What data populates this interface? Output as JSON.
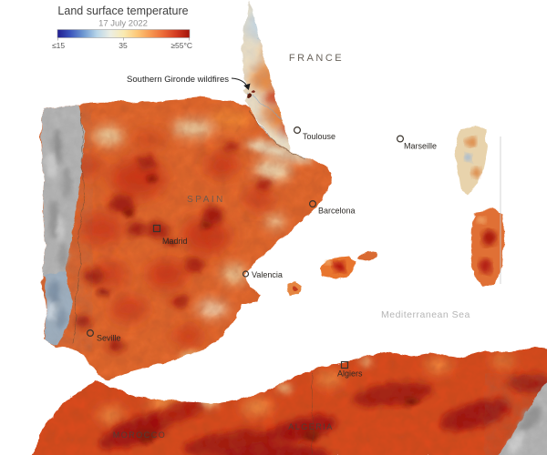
{
  "legend": {
    "title": "Land surface temperature",
    "date": "17 July 2022",
    "tick_min": "≤15",
    "tick_mid": "35",
    "tick_max": "≥55°C",
    "scale_colors": [
      "#201d90",
      "#3c56bd",
      "#6f9ad2",
      "#b9d6e9",
      "#eceee4",
      "#f9eab2",
      "#fdc979",
      "#f79a53",
      "#ec6a38",
      "#d23a20",
      "#a31309"
    ]
  },
  "annotations": {
    "wildfire_label": "Southern Gironde wildfires"
  },
  "labels": {
    "france": "FRANCE",
    "spain": "SPAIN",
    "morocco": "MOROCCO",
    "algeria": "ALGERIA",
    "sea": "Mediterranean Sea"
  },
  "cities": {
    "toulouse": "Toulouse",
    "marseille": "Marseille",
    "barcelona": "Barcelona",
    "madrid": "Madrid",
    "valencia": "Valencia",
    "seville": "Seville",
    "algiers": "Algiers"
  },
  "map_colors": {
    "sea": "#ffffff",
    "hot_base": "#e56a2e",
    "africa_base": "#dc4a1c",
    "france_base": "#ecdfc4",
    "alps_cold": "#2c3da0",
    "nodata_gray": "#b5b5b5"
  }
}
